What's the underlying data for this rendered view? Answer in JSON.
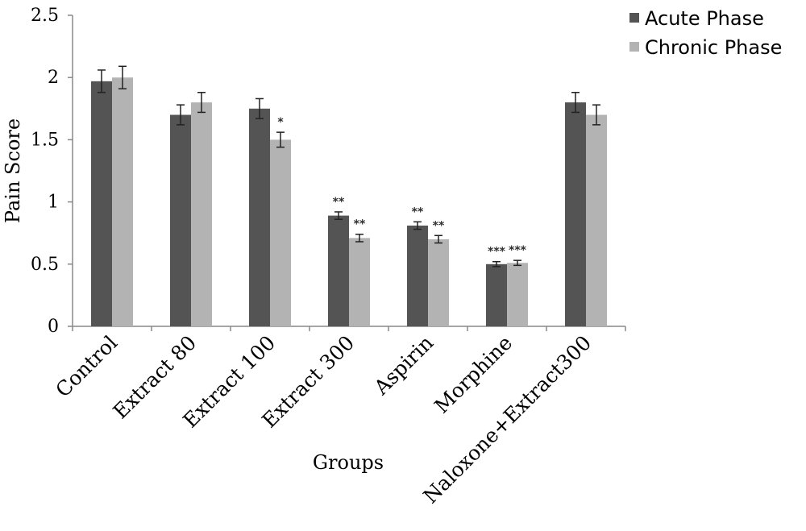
{
  "chart_data": {
    "type": "bar",
    "title": "",
    "xlabel": "Groups",
    "ylabel": "Pain Score",
    "ylim": [
      0,
      2.5
    ],
    "yticks": [
      "0",
      "0.5",
      "1",
      "1.5",
      "2",
      "2.5"
    ],
    "grid": false,
    "legend_position": "top-right",
    "categories": [
      "Control",
      "Extract 80",
      "Extract 100",
      "Extract 300",
      "Aspirin",
      "Morphine",
      "Naloxone+Extract300"
    ],
    "series": [
      {
        "name": "Acute Phase",
        "color": "#545454",
        "values": [
          1.97,
          1.7,
          1.75,
          0.89,
          0.81,
          0.5,
          1.8
        ],
        "errors": [
          0.09,
          0.08,
          0.08,
          0.03,
          0.03,
          0.02,
          0.08
        ],
        "significance": [
          "",
          "",
          "",
          "**",
          "**",
          "***",
          ""
        ]
      },
      {
        "name": "Chronic Phase",
        "color": "#b3b3b3",
        "values": [
          2.0,
          1.8,
          1.5,
          0.71,
          0.7,
          0.51,
          1.7
        ],
        "errors": [
          0.09,
          0.08,
          0.06,
          0.03,
          0.03,
          0.02,
          0.08
        ],
        "significance": [
          "",
          "",
          "*",
          "**",
          "**",
          "***",
          ""
        ]
      }
    ]
  }
}
